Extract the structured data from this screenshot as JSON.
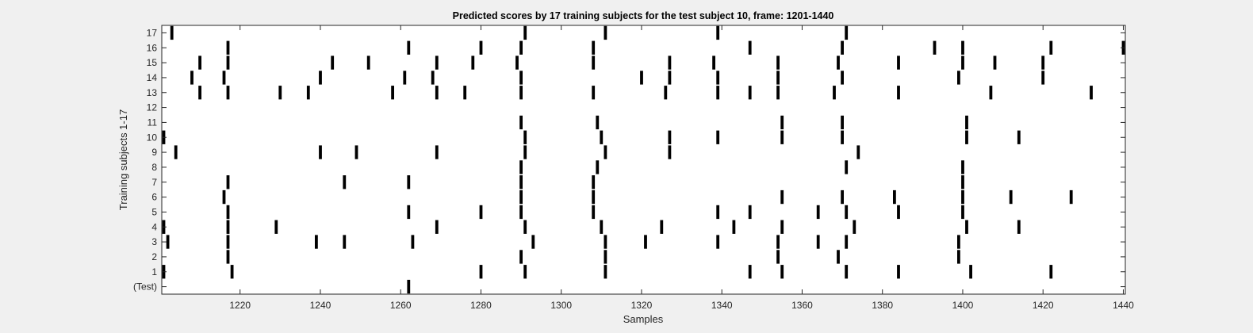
{
  "chart_data": {
    "type": "heatmap",
    "title": "Predicted scores by 17 training subjects for the test subject 10, frame: 1201-1440",
    "xlabel": "Samples",
    "ylabel": "Training subjects 1-17",
    "xlim": [
      1201,
      1440
    ],
    "xticks": [
      1220,
      1240,
      1260,
      1280,
      1300,
      1320,
      1340,
      1360,
      1380,
      1400,
      1420,
      1440
    ],
    "rows": [
      "(Test)",
      "1",
      "2",
      "3",
      "4",
      "5",
      "6",
      "7",
      "8",
      "9",
      "10",
      "11",
      "12",
      "13",
      "14",
      "15",
      "16",
      "17"
    ],
    "marker_color": "#000000",
    "background_color": "#ffffff",
    "grid": false,
    "events": [
      {
        "row": "(Test)",
        "samples": [
          1262
        ]
      },
      {
        "row": "1",
        "samples": [
          1201,
          1218,
          1280,
          1291,
          1311,
          1347,
          1355,
          1371,
          1384,
          1402,
          1422
        ]
      },
      {
        "row": "2",
        "samples": [
          1217,
          1290,
          1311,
          1354,
          1369,
          1399
        ]
      },
      {
        "row": "3",
        "samples": [
          1202,
          1217,
          1239,
          1246,
          1263,
          1293,
          1311,
          1321,
          1339,
          1354,
          1364,
          1371,
          1399
        ]
      },
      {
        "row": "4",
        "samples": [
          1201,
          1217,
          1229,
          1269,
          1291,
          1310,
          1325,
          1343,
          1355,
          1373,
          1401,
          1414
        ]
      },
      {
        "row": "5",
        "samples": [
          1217,
          1262,
          1280,
          1290,
          1308,
          1339,
          1347,
          1364,
          1371,
          1384,
          1400
        ]
      },
      {
        "row": "6",
        "samples": [
          1216,
          1290,
          1308,
          1355,
          1370,
          1383,
          1400,
          1412,
          1427
        ]
      },
      {
        "row": "7",
        "samples": [
          1217,
          1246,
          1262,
          1290,
          1308,
          1400
        ]
      },
      {
        "row": "8",
        "samples": [
          1290,
          1309,
          1371,
          1400
        ]
      },
      {
        "row": "9",
        "samples": [
          1204,
          1240,
          1249,
          1269,
          1291,
          1311,
          1327,
          1374
        ]
      },
      {
        "row": "10",
        "samples": [
          1201,
          1291,
          1310,
          1327,
          1339,
          1355,
          1370,
          1401,
          1414
        ]
      },
      {
        "row": "11",
        "samples": [
          1290,
          1309,
          1355,
          1370,
          1401
        ]
      },
      {
        "row": "12",
        "samples": []
      },
      {
        "row": "13",
        "samples": [
          1210,
          1217,
          1230,
          1237,
          1258,
          1269,
          1276,
          1290,
          1308,
          1326,
          1339,
          1347,
          1354,
          1368,
          1384,
          1407,
          1432
        ]
      },
      {
        "row": "14",
        "samples": [
          1208,
          1216,
          1240,
          1261,
          1268,
          1290,
          1320,
          1327,
          1339,
          1354,
          1370,
          1399,
          1420
        ]
      },
      {
        "row": "15",
        "samples": [
          1210,
          1217,
          1243,
          1252,
          1269,
          1278,
          1289,
          1308,
          1327,
          1338,
          1354,
          1369,
          1384,
          1400,
          1408,
          1420
        ]
      },
      {
        "row": "16",
        "samples": [
          1217,
          1262,
          1280,
          1290,
          1308,
          1347,
          1370,
          1393,
          1400,
          1422,
          1440
        ]
      },
      {
        "row": "17",
        "samples": [
          1203,
          1291,
          1311,
          1339,
          1371
        ]
      }
    ]
  }
}
